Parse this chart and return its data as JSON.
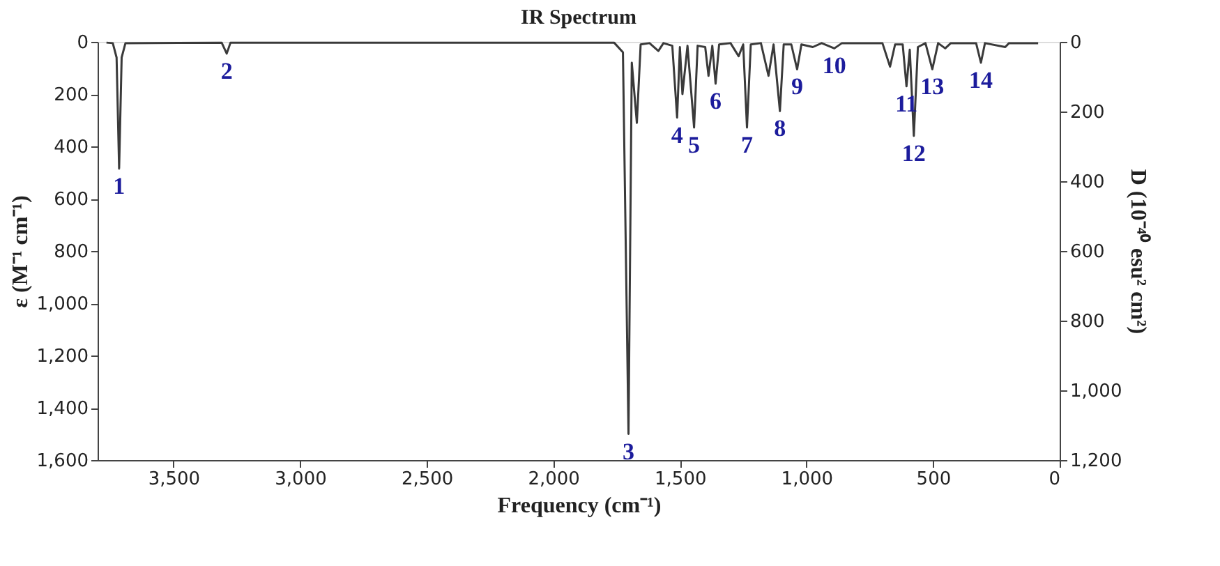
{
  "chart_data": {
    "type": "line",
    "title": "IR Spectrum",
    "xlabel": "Frequency (cm⁻¹)",
    "ylabel": "ε (M⁻¹ cm⁻¹)",
    "y2label": "D (10⁻⁴⁰ esu² cm²)",
    "x": [
      3765,
      3740,
      3725,
      3715,
      3705,
      3690,
      3310,
      3290,
      3275,
      1760,
      1725,
      1703,
      1690,
      1670,
      1655,
      1620,
      1585,
      1565,
      1530,
      1511,
      1500,
      1490,
      1470,
      1444,
      1430,
      1400,
      1387,
      1372,
      1359,
      1345,
      1300,
      1268,
      1250,
      1235,
      1220,
      1180,
      1150,
      1130,
      1105,
      1090,
      1060,
      1037,
      1020,
      975,
      940,
      890,
      860,
      700,
      670,
      650,
      620,
      605,
      592,
      576,
      560,
      530,
      503,
      480,
      452,
      430,
      330,
      311,
      295,
      215,
      200,
      85
    ],
    "series": [
      {
        "color": "#3a3a3a",
        "values": [
          3,
          5,
          60,
          485,
          60,
          5,
          3,
          45,
          3,
          3,
          40,
          1500,
          80,
          310,
          10,
          5,
          35,
          5,
          15,
          290,
          20,
          200,
          15,
          328,
          15,
          20,
          130,
          15,
          160,
          10,
          5,
          55,
          10,
          328,
          10,
          5,
          130,
          10,
          265,
          10,
          10,
          105,
          10,
          20,
          5,
          25,
          5,
          5,
          95,
          10,
          10,
          170,
          30,
          360,
          20,
          5,
          105,
          5,
          25,
          5,
          5,
          80,
          5,
          20,
          5,
          5
        ]
      }
    ],
    "xlim": [
      3800,
      0
    ],
    "xticks": [
      {
        "value": 3500,
        "label": "3,500"
      },
      {
        "value": 3000,
        "label": "3,000"
      },
      {
        "value": 2500,
        "label": "2,500"
      },
      {
        "value": 2000,
        "label": "2,000"
      },
      {
        "value": 1500,
        "label": "1,500"
      },
      {
        "value": 1000,
        "label": "1,000"
      },
      500,
      0
    ],
    "ylim": [
      1600,
      0
    ],
    "yticks": [
      0,
      200,
      400,
      600,
      800,
      {
        "value": 1000,
        "label": "1,000"
      },
      {
        "value": 1200,
        "label": "1,200"
      },
      {
        "value": 1400,
        "label": "1,400"
      },
      {
        "value": 1600,
        "label": "1,600"
      }
    ],
    "y2lim": [
      1200,
      0
    ],
    "y2ticks": [
      0,
      200,
      400,
      600,
      800,
      {
        "value": 1000,
        "label": "1,000"
      },
      {
        "value": 1200,
        "label": "1,200"
      }
    ],
    "annotations": [
      {
        "text": "1",
        "x": 3715,
        "y": 485
      },
      {
        "text": "2",
        "x": 3290,
        "y": 45
      },
      {
        "text": "3",
        "x": 1703,
        "y": 1500
      },
      {
        "text": "4",
        "x": 1511,
        "y": 290
      },
      {
        "text": "5",
        "x": 1444,
        "y": 328
      },
      {
        "text": "6",
        "x": 1359,
        "y": 160
      },
      {
        "text": "7",
        "x": 1235,
        "y": 328
      },
      {
        "text": "8",
        "x": 1105,
        "y": 265
      },
      {
        "text": "9",
        "x": 1037,
        "y": 105
      },
      {
        "text": "10",
        "x": 890,
        "y": 25
      },
      {
        "text": "11",
        "x": 605,
        "y": 170
      },
      {
        "text": "12",
        "x": 576,
        "y": 360
      },
      {
        "text": "13",
        "x": 503,
        "y": 105
      },
      {
        "text": "14",
        "x": 311,
        "y": 80
      }
    ],
    "grid": false,
    "marker": "none",
    "line_style": "solid"
  }
}
